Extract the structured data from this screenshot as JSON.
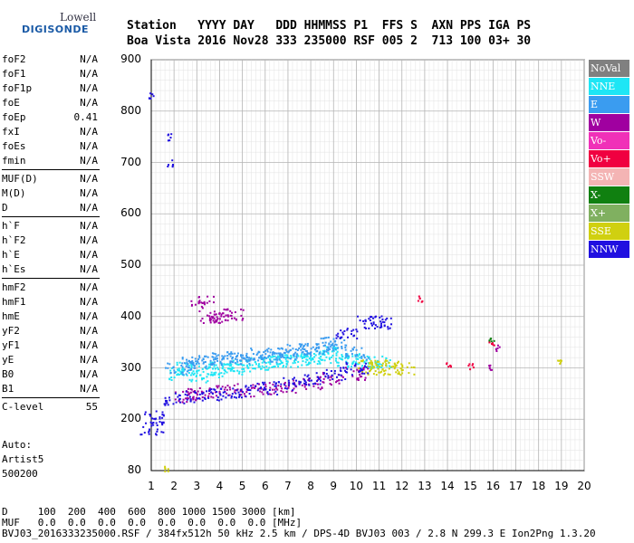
{
  "logo": {
    "line1": "Lowell",
    "line2": "DIGISONDE"
  },
  "header": {
    "row1": "Station   YYYY DAY   DDD HHMMSS P1  FFS S  AXN PPS IGA PS",
    "row2": "Boa Vista 2016 Nov28 333 235000 RSF 005 2  713 100 03+ 30"
  },
  "params": [
    [
      {
        "k": "foF2",
        "v": "N/A"
      },
      {
        "k": "foF1",
        "v": "N/A"
      },
      {
        "k": "foF1p",
        "v": "N/A"
      },
      {
        "k": "foE",
        "v": "N/A"
      },
      {
        "k": "foEp",
        "v": "0.41"
      },
      {
        "k": "fxI",
        "v": "N/A"
      },
      {
        "k": "foEs",
        "v": "N/A"
      },
      {
        "k": "fmin",
        "v": "N/A"
      }
    ],
    [
      {
        "k": "MUF(D)",
        "v": "N/A"
      },
      {
        "k": "M(D)",
        "v": "N/A"
      },
      {
        "k": "D",
        "v": "N/A"
      }
    ],
    [
      {
        "k": "h`F",
        "v": "N/A"
      },
      {
        "k": "h`F2",
        "v": "N/A"
      },
      {
        "k": "h`E",
        "v": "N/A"
      },
      {
        "k": "h`Es",
        "v": "N/A"
      }
    ],
    [
      {
        "k": "hmF2",
        "v": "N/A"
      },
      {
        "k": "hmF1",
        "v": "N/A"
      },
      {
        "k": "hmE",
        "v": "N/A"
      },
      {
        "k": "yF2",
        "v": "N/A"
      },
      {
        "k": "yF1",
        "v": "N/A"
      },
      {
        "k": "yE",
        "v": "N/A"
      },
      {
        "k": "B0",
        "v": "N/A"
      },
      {
        "k": "B1",
        "v": "N/A"
      }
    ],
    [
      {
        "k": "C-level",
        "v": "55"
      }
    ]
  ],
  "auto": {
    "line1": "Auto:",
    "line2": "Artist5",
    "line3": "500200"
  },
  "legend": [
    {
      "label": "NoVal",
      "color": "#808080"
    },
    {
      "label": "NNE",
      "color": "#1ee6f5"
    },
    {
      "label": "E",
      "color": "#3a9cf0"
    },
    {
      "label": "W",
      "color": "#a000a0"
    },
    {
      "label": "Vo-",
      "color": "#f030b8"
    },
    {
      "label": "Vo+",
      "color": "#f00040"
    },
    {
      "label": "SSW",
      "color": "#f4b4b4"
    },
    {
      "label": "X-",
      "color": "#108010"
    },
    {
      "label": "X+",
      "color": "#80b060"
    },
    {
      "label": "SSE",
      "color": "#d0d010"
    },
    {
      "label": "NNW",
      "color": "#2010e0"
    }
  ],
  "chart_data": {
    "type": "scatter",
    "xlabel": "",
    "ylabel": "",
    "xlim": [
      1,
      20
    ],
    "ylim": [
      80,
      900
    ],
    "x_ticks": [
      1,
      2,
      3,
      4,
      5,
      6,
      7,
      8,
      9,
      10,
      11,
      12,
      13,
      14,
      15,
      16,
      17,
      18,
      19,
      20
    ],
    "y_ticks": [
      80,
      200,
      300,
      400,
      500,
      600,
      700,
      800,
      900
    ],
    "grid": true,
    "legend_position": "right",
    "series": [
      {
        "name": "NNE",
        "color": "#1ee6f5",
        "points": [
          [
            2.2,
            290
          ],
          [
            3,
            285
          ],
          [
            4,
            300
          ],
          [
            5,
            305
          ],
          [
            6,
            310
          ],
          [
            7,
            315
          ],
          [
            8,
            320
          ],
          [
            9,
            330
          ],
          [
            10,
            320
          ],
          [
            11,
            310
          ],
          [
            2.6,
            300
          ],
          [
            3.6,
            295
          ],
          [
            4.6,
            300
          ],
          [
            5.6,
            310
          ],
          [
            6.6,
            315
          ],
          [
            7.6,
            318
          ],
          [
            8.6,
            322
          ],
          [
            9.6,
            315
          ],
          [
            10.6,
            312
          ]
        ]
      },
      {
        "name": "E",
        "color": "#3a9cf0",
        "points": [
          [
            2.1,
            300
          ],
          [
            3,
            310
          ],
          [
            4,
            320
          ],
          [
            5,
            318
          ],
          [
            6,
            325
          ],
          [
            7,
            330
          ],
          [
            8,
            340
          ],
          [
            9,
            345
          ],
          [
            10,
            330
          ],
          [
            2.8,
            315
          ],
          [
            3.8,
            318
          ],
          [
            4.8,
            322
          ],
          [
            5.8,
            328
          ],
          [
            6.8,
            335
          ],
          [
            7.8,
            338
          ],
          [
            8.8,
            350
          ]
        ]
      },
      {
        "name": "W",
        "color": "#a000a0",
        "points": [
          [
            2.5,
            245
          ],
          [
            3,
            250
          ],
          [
            4,
            255
          ],
          [
            5,
            258
          ],
          [
            6,
            262
          ],
          [
            7,
            265
          ],
          [
            8,
            272
          ],
          [
            9,
            280
          ],
          [
            10,
            290
          ],
          [
            3.5,
            400
          ],
          [
            4,
            400
          ],
          [
            4.5,
            405
          ],
          [
            3.2,
            430
          ],
          [
            15.8,
            300
          ],
          [
            16.2,
            340
          ]
        ]
      },
      {
        "name": "Vo+",
        "color": "#f00040",
        "points": [
          [
            12.8,
            435
          ],
          [
            14,
            310
          ],
          [
            15,
            305
          ],
          [
            15.9,
            350
          ]
        ]
      },
      {
        "name": "X-",
        "color": "#108010",
        "points": [
          [
            15.9,
            360
          ]
        ]
      },
      {
        "name": "SSE",
        "color": "#d0d010",
        "points": [
          [
            10.5,
            305
          ],
          [
            11,
            300
          ],
          [
            11.5,
            305
          ],
          [
            12,
            300
          ],
          [
            1.6,
            85
          ],
          [
            18.9,
            310
          ]
        ]
      },
      {
        "name": "NNW",
        "color": "#2010e0",
        "points": [
          [
            1,
            205
          ],
          [
            1,
            180
          ],
          [
            1.8,
            700
          ],
          [
            1.8,
            750
          ],
          [
            2,
            240
          ],
          [
            3,
            245
          ],
          [
            4,
            250
          ],
          [
            5,
            255
          ],
          [
            6,
            262
          ],
          [
            7,
            270
          ],
          [
            8,
            280
          ],
          [
            9,
            290
          ],
          [
            10,
            300
          ],
          [
            10.5,
            390
          ],
          [
            11,
            390
          ],
          [
            9.5,
            370
          ],
          [
            0.98,
            830
          ]
        ]
      }
    ]
  },
  "footer": {
    "line1": "D     100  200  400  600  800 1000 1500 3000 [km]",
    "line2": "MUF   0.0  0.0  0.0  0.0  0.0  0.0  0.0  0.0 [MHz]",
    "line3": "BVJ03_2016333235000.RSF / 384fx512h 50 kHz 2.5 km / DPS-4D BVJ03 003 / 2.8 N 299.3 E Ion2Png 1.3.20"
  }
}
